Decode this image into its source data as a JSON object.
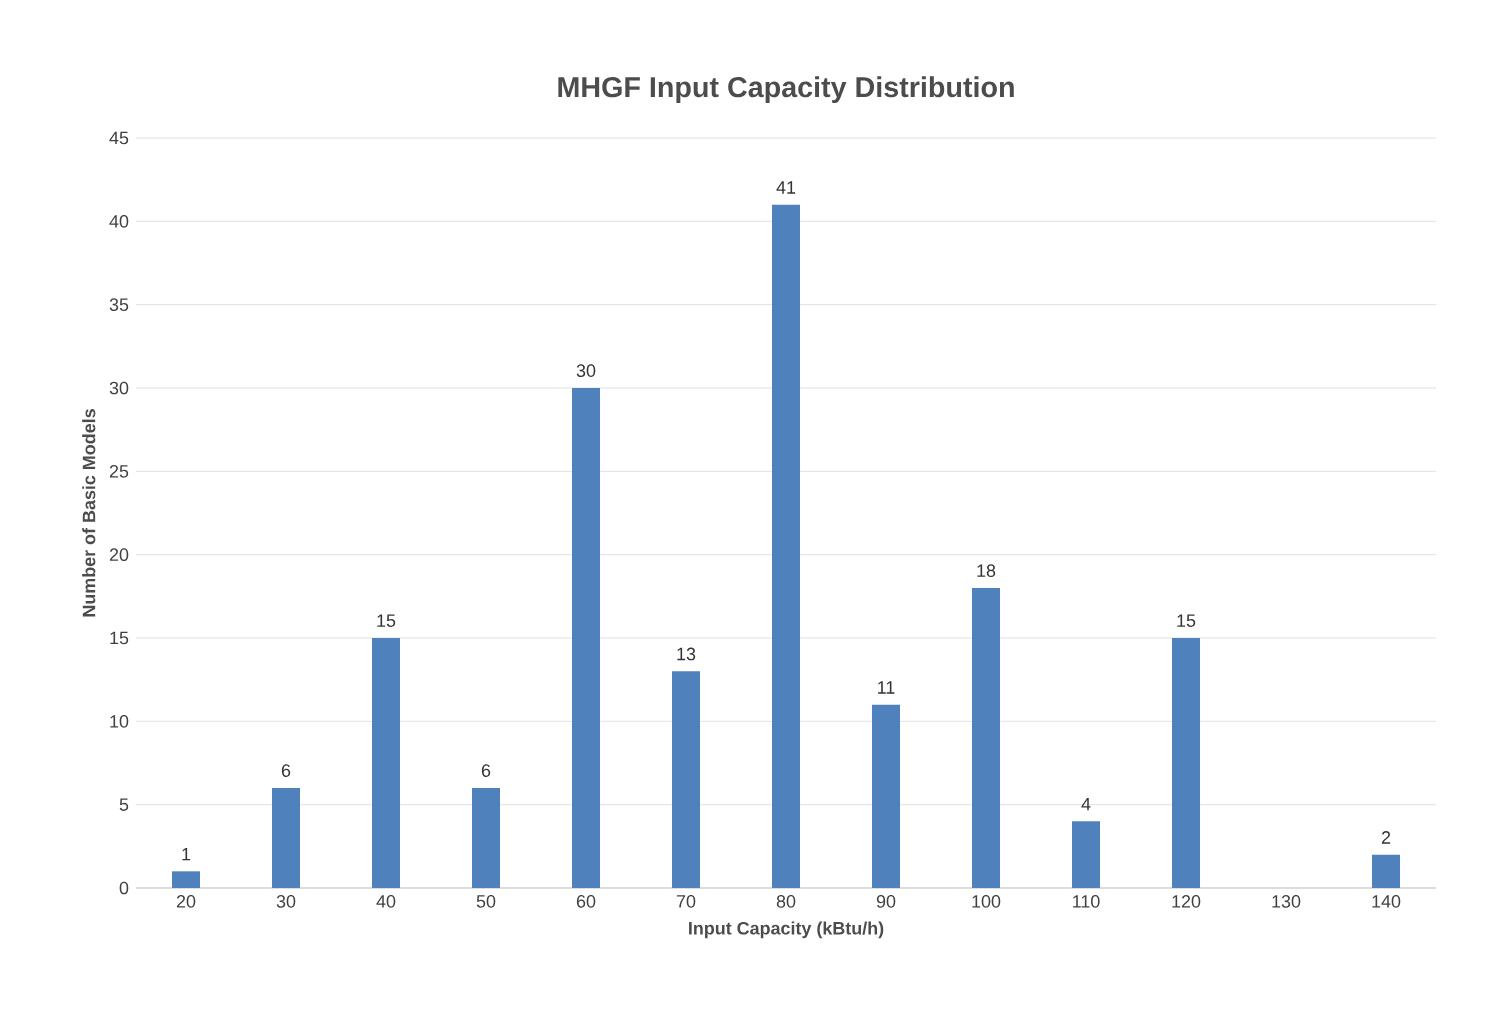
{
  "chart_data": {
    "type": "bar",
    "title": "MHGF Input Capacity Distribution",
    "xlabel": "Input Capacity  (kBtu/h)",
    "ylabel": "Number of Basic Models",
    "categories": [
      "20",
      "30",
      "40",
      "50",
      "60",
      "70",
      "80",
      "90",
      "100",
      "110",
      "120",
      "130",
      "140"
    ],
    "values": [
      1,
      6,
      15,
      6,
      30,
      13,
      41,
      11,
      18,
      4,
      15,
      null,
      2
    ],
    "value_labels": [
      "1",
      "6",
      "15",
      "6",
      "30",
      "13",
      "41",
      "11",
      "18",
      "4",
      "15",
      null,
      "2"
    ],
    "color": "#4f81bd",
    "ylim": [
      0,
      45
    ],
    "yticks": [
      0,
      5,
      10,
      15,
      20,
      25,
      30,
      35,
      40,
      45
    ],
    "grid": "y"
  }
}
